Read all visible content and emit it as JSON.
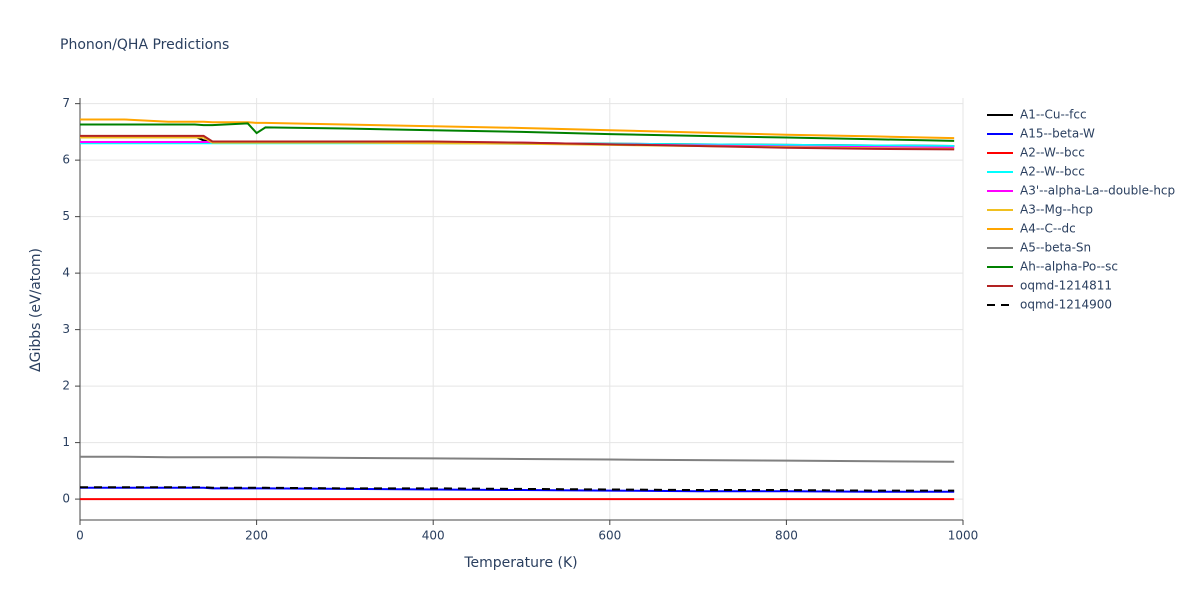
{
  "chart_data": {
    "type": "line",
    "title": "Phonon/QHA Predictions",
    "x_label": "Temperature (K)",
    "y_label": "ΔGibbs (eV/atom)",
    "x": [
      0,
      50,
      100,
      130,
      140,
      150,
      190,
      200,
      210,
      300,
      400,
      500,
      600,
      700,
      800,
      900,
      990
    ],
    "series": [
      {
        "name": "A1--Cu--fcc",
        "color": "#000000",
        "values": [
          6.42,
          6.42,
          6.42,
          6.42,
          6.35,
          6.31,
          6.31,
          6.31,
          6.31,
          6.31,
          6.31,
          6.3,
          6.29,
          6.28,
          6.27,
          6.26,
          6.25
        ]
      },
      {
        "name": "A15--beta-W",
        "color": "#0000ff",
        "values": [
          0.2,
          0.2,
          0.2,
          0.2,
          0.2,
          0.19,
          0.19,
          0.19,
          0.19,
          0.18,
          0.17,
          0.16,
          0.15,
          0.14,
          0.14,
          0.13,
          0.13
        ]
      },
      {
        "name": "A2--W--bcc",
        "color": "#ff0000",
        "values": [
          0,
          0,
          0,
          0,
          0,
          0,
          0,
          0,
          0,
          0,
          0,
          0,
          0,
          0,
          0,
          0,
          0
        ]
      },
      {
        "name": "A2--W--bcc",
        "color": "#00ffff",
        "values": [
          6.3,
          6.3,
          6.3,
          6.3,
          6.3,
          6.3,
          6.3,
          6.3,
          6.3,
          6.3,
          6.3,
          6.29,
          6.29,
          6.28,
          6.27,
          6.26,
          6.25
        ]
      },
      {
        "name": "A3'--alpha-La--double-hcp",
        "color": "#ff00ff",
        "values": [
          6.32,
          6.32,
          6.32,
          6.32,
          6.32,
          6.32,
          6.32,
          6.32,
          6.32,
          6.32,
          6.32,
          6.31,
          6.28,
          6.26,
          6.24,
          6.23,
          6.22
        ]
      },
      {
        "name": "A3--Mg--hcp",
        "color": "#f0c020",
        "values": [
          6.4,
          6.4,
          6.4,
          6.4,
          6.4,
          6.31,
          6.31,
          6.31,
          6.31,
          6.31,
          6.3,
          6.29,
          6.27,
          6.25,
          6.23,
          6.21,
          6.2
        ]
      },
      {
        "name": "A4--C--dc",
        "color": "#ffa500",
        "values": [
          6.72,
          6.72,
          6.68,
          6.68,
          6.68,
          6.67,
          6.67,
          6.66,
          6.66,
          6.63,
          6.6,
          6.57,
          6.53,
          6.49,
          6.45,
          6.42,
          6.39
        ]
      },
      {
        "name": "A5--beta-Sn",
        "color": "#808080",
        "values": [
          0.75,
          0.75,
          0.74,
          0.74,
          0.74,
          0.74,
          0.74,
          0.74,
          0.74,
          0.73,
          0.72,
          0.71,
          0.7,
          0.69,
          0.68,
          0.67,
          0.66
        ]
      },
      {
        "name": "Ah--alpha-Po--sc",
        "color": "#008000",
        "values": [
          6.63,
          6.63,
          6.63,
          6.63,
          6.62,
          6.62,
          6.65,
          6.48,
          6.58,
          6.56,
          6.53,
          6.5,
          6.46,
          6.43,
          6.4,
          6.37,
          6.34
        ]
      },
      {
        "name": "oqmd-1214811",
        "color": "#b22222",
        "values": [
          6.43,
          6.43,
          6.43,
          6.43,
          6.43,
          6.33,
          6.33,
          6.33,
          6.33,
          6.33,
          6.33,
          6.31,
          6.28,
          6.25,
          6.22,
          6.2,
          6.19
        ]
      },
      {
        "name": "oqmd-1214900",
        "color": "#000000",
        "dash": "dash",
        "values": [
          0.21,
          0.21,
          0.21,
          0.21,
          0.21,
          0.2,
          0.2,
          0.2,
          0.2,
          0.19,
          0.19,
          0.18,
          0.17,
          0.16,
          0.16,
          0.15,
          0.15
        ]
      }
    ],
    "xlim": [
      0,
      1000
    ],
    "ylim": [
      -0.37,
      7.1
    ],
    "xticks": [
      0,
      200,
      400,
      600,
      800,
      1000
    ],
    "yticks": [
      0,
      1,
      2,
      3,
      4,
      5,
      6,
      7
    ],
    "grid": true
  }
}
